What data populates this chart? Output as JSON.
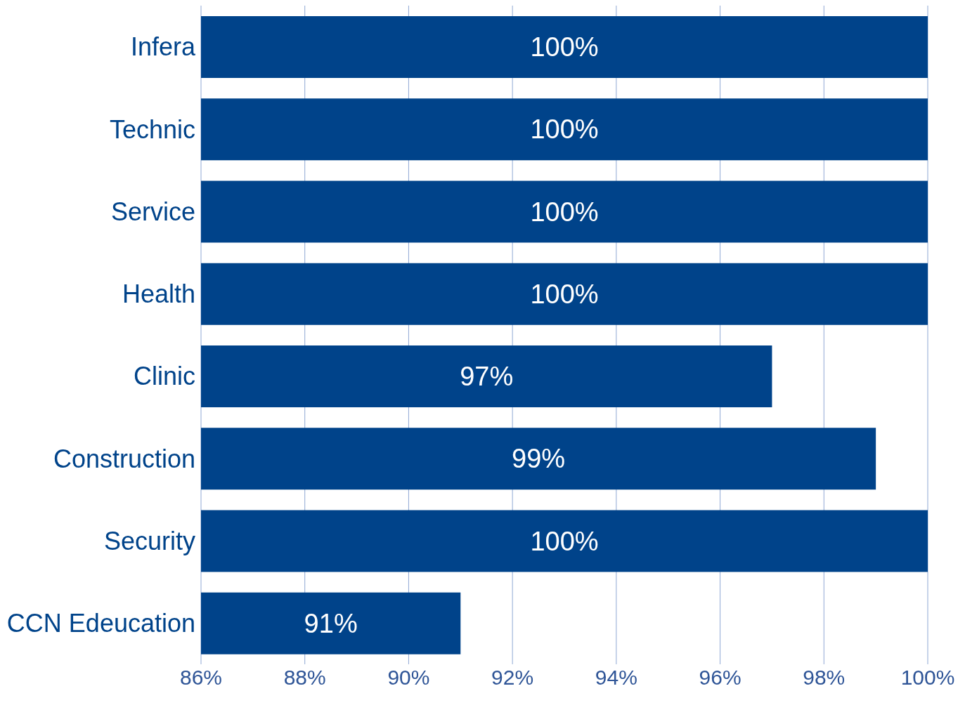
{
  "chart_data": {
    "type": "bar",
    "orientation": "horizontal",
    "categories": [
      "Infera",
      "Technic",
      "Service",
      "Health",
      "Clinic",
      "Construction",
      "Security",
      "CCN Edeucation"
    ],
    "values": [
      100,
      100,
      100,
      100,
      97,
      99,
      100,
      91
    ],
    "value_labels": [
      "100%",
      "100%",
      "100%",
      "100%",
      "97%",
      "99%",
      "100%",
      "91%"
    ],
    "color": "#00438a",
    "xlim": [
      86,
      100
    ],
    "xticks": [
      {
        "value": 86,
        "label": "86%"
      },
      {
        "value": 88,
        "label": "88%"
      },
      {
        "value": 90,
        "label": "90%"
      },
      {
        "value": 92,
        "label": "92%"
      },
      {
        "value": 94,
        "label": "94%"
      },
      {
        "value": 96,
        "label": "96%"
      },
      {
        "value": 98,
        "label": "98%"
      },
      {
        "value": 100,
        "label": "100%"
      }
    ],
    "grid": "x",
    "legend": false
  }
}
